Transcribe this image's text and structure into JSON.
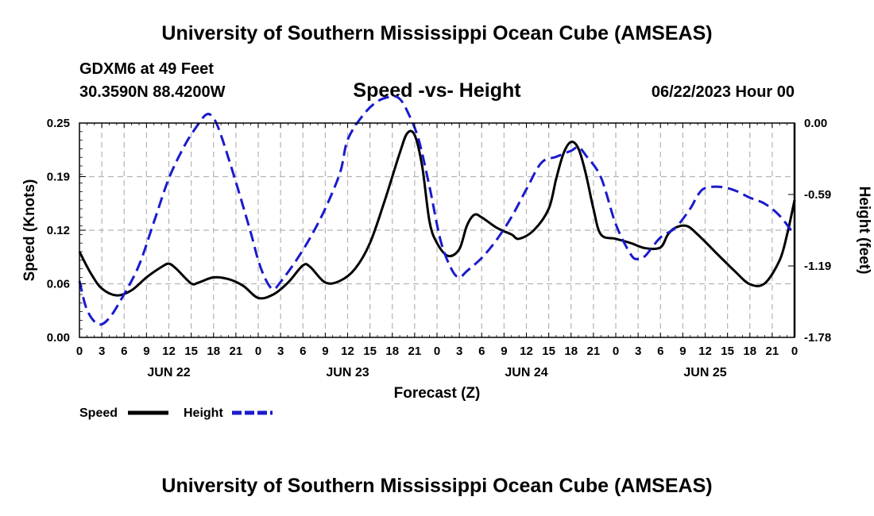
{
  "header": {
    "title": "University of Southern Mississippi Ocean Cube (AMSEAS)",
    "station": "GDXM6 at 49 Feet",
    "coords": "30.3590N  88.4200W",
    "subtitle": "Speed -vs- Height",
    "datestamp": "06/22/2023 Hour 00"
  },
  "footer": {
    "title": "University of Southern Mississippi Ocean Cube (AMSEAS)"
  },
  "colors": {
    "speed": "#000000",
    "height": "#1a1acc",
    "grid": "#b4b4b4"
  },
  "chart_data": {
    "type": "line",
    "title": "Speed -vs- Height",
    "xlabel": "Forecast (Z)",
    "ylabel": "Speed (Knots)",
    "y2label": "Height (feet)",
    "xlim": [
      0,
      96
    ],
    "ylim": [
      0.0,
      0.25
    ],
    "y2lim": [
      -1.78,
      0.0
    ],
    "yticks": [
      "0.00",
      "0.06",
      "0.12",
      "0.19",
      "0.25"
    ],
    "y2ticks": [
      "-1.78",
      "-1.19",
      "-0.59",
      "0.00"
    ],
    "xtick_labels": [
      "0",
      "3",
      "6",
      "9",
      "12",
      "15",
      "18",
      "21",
      "0",
      "3",
      "6",
      "9",
      "12",
      "15",
      "18",
      "21",
      "0",
      "3",
      "6",
      "9",
      "12",
      "15",
      "18",
      "21",
      "0",
      "3",
      "6",
      "9",
      "12",
      "15",
      "18",
      "21",
      "0"
    ],
    "day_labels": [
      {
        "hour": 12,
        "label": "JUN 22"
      },
      {
        "hour": 36,
        "label": "JUN 23"
      },
      {
        "hour": 60,
        "label": "JUN 24"
      },
      {
        "hour": 84,
        "label": "JUN 25"
      }
    ],
    "grid": true,
    "legend": {
      "position": "bottom-left",
      "entries": [
        "Speed",
        "Height"
      ]
    },
    "series": [
      {
        "name": "Speed",
        "axis": "left",
        "style": "solid",
        "points": [
          [
            0,
            0.1
          ],
          [
            1.5,
            0.075
          ],
          [
            3,
            0.057
          ],
          [
            5,
            0.049
          ],
          [
            7,
            0.055
          ],
          [
            9,
            0.07
          ],
          [
            11,
            0.082
          ],
          [
            12,
            0.086
          ],
          [
            13,
            0.08
          ],
          [
            15,
            0.063
          ],
          [
            16,
            0.064
          ],
          [
            18,
            0.07
          ],
          [
            20,
            0.068
          ],
          [
            22,
            0.06
          ],
          [
            24,
            0.046
          ],
          [
            26,
            0.05
          ],
          [
            28,
            0.064
          ],
          [
            30,
            0.084
          ],
          [
            31,
            0.082
          ],
          [
            33,
            0.064
          ],
          [
            35,
            0.066
          ],
          [
            37,
            0.08
          ],
          [
            39,
            0.11
          ],
          [
            41,
            0.16
          ],
          [
            43,
            0.215
          ],
          [
            44,
            0.238
          ],
          [
            45,
            0.236
          ],
          [
            46,
            0.2
          ],
          [
            47,
            0.135
          ],
          [
            48,
            0.11
          ],
          [
            49.5,
            0.095
          ],
          [
            51,
            0.103
          ],
          [
            52,
            0.13
          ],
          [
            53,
            0.143
          ],
          [
            54,
            0.14
          ],
          [
            56,
            0.128
          ],
          [
            58,
            0.12
          ],
          [
            59,
            0.115
          ],
          [
            61,
            0.125
          ],
          [
            63,
            0.15
          ],
          [
            64,
            0.185
          ],
          [
            65,
            0.215
          ],
          [
            66,
            0.228
          ],
          [
            67,
            0.22
          ],
          [
            68,
            0.19
          ],
          [
            69,
            0.15
          ],
          [
            70,
            0.12
          ],
          [
            72,
            0.115
          ],
          [
            74,
            0.11
          ],
          [
            76,
            0.104
          ],
          [
            78,
            0.105
          ],
          [
            79,
            0.12
          ],
          [
            80,
            0.128
          ],
          [
            81.5,
            0.13
          ],
          [
            83,
            0.12
          ],
          [
            86,
            0.094
          ],
          [
            88,
            0.077
          ],
          [
            90,
            0.062
          ],
          [
            92,
            0.063
          ],
          [
            94,
            0.09
          ],
          [
            95,
            0.12
          ],
          [
            96,
            0.16
          ]
        ]
      },
      {
        "name": "Height",
        "axis": "right",
        "style": "dashed",
        "points": [
          [
            0,
            -1.31
          ],
          [
            1,
            -1.55
          ],
          [
            2.5,
            -1.67
          ],
          [
            4,
            -1.62
          ],
          [
            6,
            -1.42
          ],
          [
            8,
            -1.18
          ],
          [
            10,
            -0.82
          ],
          [
            12,
            -0.46
          ],
          [
            14,
            -0.2
          ],
          [
            15.5,
            -0.05
          ],
          [
            17,
            0.07
          ],
          [
            18,
            0.04
          ],
          [
            19,
            -0.1
          ],
          [
            21,
            -0.49
          ],
          [
            23,
            -0.91
          ],
          [
            24,
            -1.14
          ],
          [
            25,
            -1.3
          ],
          [
            26,
            -1.38
          ],
          [
            27,
            -1.32
          ],
          [
            29,
            -1.15
          ],
          [
            31,
            -0.95
          ],
          [
            33,
            -0.71
          ],
          [
            35,
            -0.41
          ],
          [
            36,
            -0.14
          ],
          [
            38,
            0.06
          ],
          [
            40,
            0.18
          ],
          [
            42,
            0.22
          ],
          [
            43,
            0.2
          ],
          [
            44,
            0.1
          ],
          [
            45.5,
            -0.13
          ],
          [
            47,
            -0.53
          ],
          [
            48.5,
            -0.98
          ],
          [
            50,
            -1.22
          ],
          [
            51,
            -1.28
          ],
          [
            52,
            -1.23
          ],
          [
            54,
            -1.12
          ],
          [
            56,
            -0.97
          ],
          [
            58,
            -0.78
          ],
          [
            60,
            -0.55
          ],
          [
            62,
            -0.33
          ],
          [
            64,
            -0.28
          ],
          [
            66,
            -0.23
          ],
          [
            67,
            -0.2
          ],
          [
            68,
            -0.27
          ],
          [
            70,
            -0.45
          ],
          [
            72,
            -0.84
          ],
          [
            74,
            -1.09
          ],
          [
            75,
            -1.13
          ],
          [
            76,
            -1.1
          ],
          [
            78,
            -0.95
          ],
          [
            80,
            -0.87
          ],
          [
            82,
            -0.71
          ],
          [
            83,
            -0.6
          ],
          [
            84,
            -0.54
          ],
          [
            86,
            -0.53
          ],
          [
            88,
            -0.56
          ],
          [
            90,
            -0.62
          ],
          [
            92,
            -0.67
          ],
          [
            94,
            -0.77
          ],
          [
            96,
            -0.93
          ]
        ]
      }
    ]
  }
}
